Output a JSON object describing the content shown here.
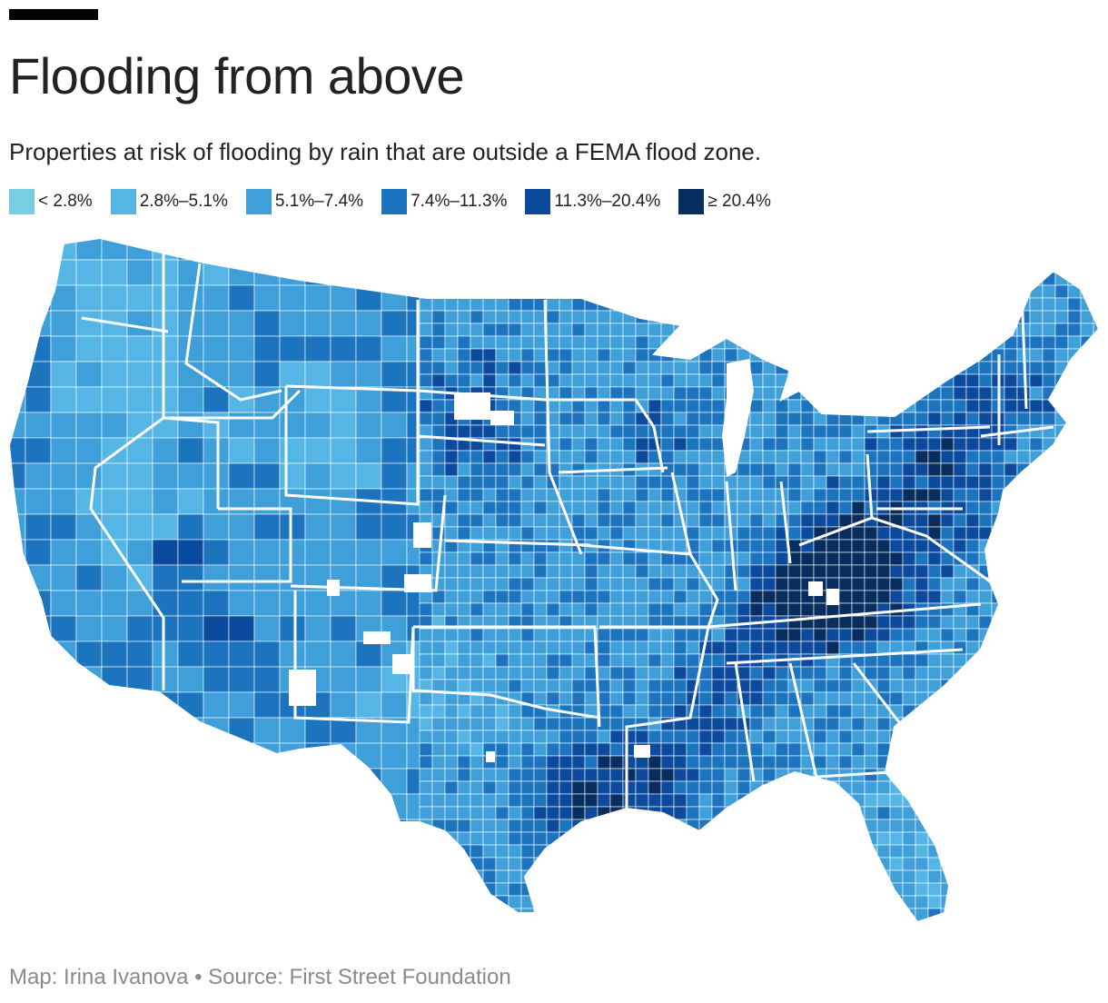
{
  "header": {
    "title": "Flooding from above",
    "subtitle": "Properties at risk of flooding by rain that are outside a FEMA flood zone."
  },
  "legend": {
    "items": [
      {
        "label": "< 2.8%",
        "color": "#79cde0"
      },
      {
        "label": "2.8%–5.1%",
        "color": "#55b6e6"
      },
      {
        "label": "5.1%–7.4%",
        "color": "#3f9fd8"
      },
      {
        "label": "7.4%–11.3%",
        "color": "#1c74be"
      },
      {
        "label": "11.3%–20.4%",
        "color": "#0b4a9c"
      },
      {
        "label": "≥ 20.4%",
        "color": "#072e5e"
      }
    ]
  },
  "footer": {
    "credit": "Map: Irina Ivanova • Source: First Street Foundation"
  },
  "map": {
    "region": "Contiguous United States",
    "unit": "county",
    "colors": {
      "nodata": "#ffffff",
      "border": "#ffffff"
    }
  }
}
